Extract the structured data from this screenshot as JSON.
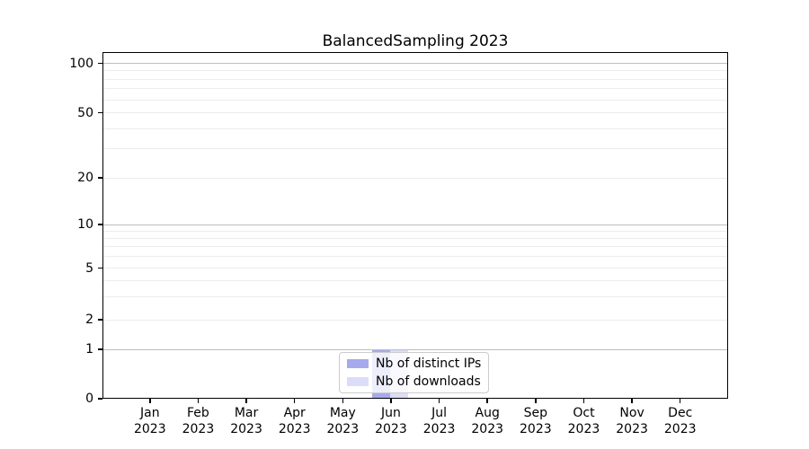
{
  "title": "BalancedSampling 2023",
  "chart_data": {
    "type": "bar",
    "title": "BalancedSampling 2023",
    "xlabel": "",
    "ylabel": "",
    "categories": [
      "Jan 2023",
      "Feb 2023",
      "Mar 2023",
      "Apr 2023",
      "May 2023",
      "Jun 2023",
      "Jul 2023",
      "Aug 2023",
      "Sep 2023",
      "Oct 2023",
      "Nov 2023",
      "Dec 2023"
    ],
    "series": [
      {
        "name": "Nb of distinct IPs",
        "color": "#a6aaec",
        "values": [
          0,
          0,
          0,
          0,
          0,
          1,
          0,
          0,
          0,
          0,
          0,
          0
        ]
      },
      {
        "name": "Nb of downloads",
        "color": "#dbddf8",
        "values": [
          0,
          0,
          0,
          0,
          0,
          1,
          0,
          0,
          0,
          0,
          0,
          0
        ]
      }
    ],
    "yscale": "asinh",
    "yticks_labeled": [
      0,
      1,
      2,
      5,
      10,
      20,
      50,
      100
    ],
    "yticks_major_grid": [
      1,
      10,
      100
    ],
    "yticks_minor_grid": [
      2,
      3,
      4,
      5,
      6,
      7,
      8,
      9,
      20,
      30,
      40,
      50,
      60,
      70,
      80,
      90
    ],
    "ylim": [
      0,
      117
    ],
    "grid": "horizontal, major and minor, on",
    "legend_position": "lower center"
  },
  "colors": {
    "major_grid": "#bdbdbd",
    "minor_grid": "#ececec",
    "spine": "#000000",
    "legend_border": "#cccccc",
    "background": "#ffffff"
  }
}
